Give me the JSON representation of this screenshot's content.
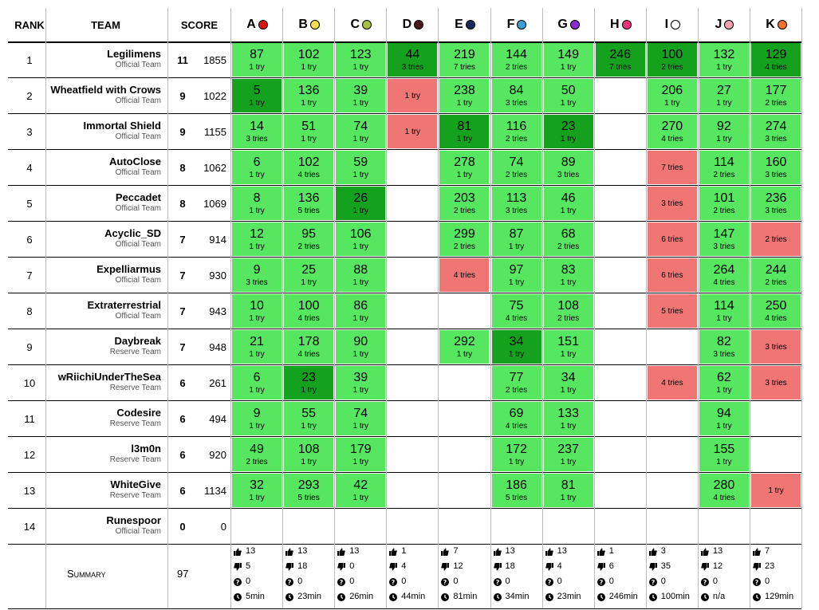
{
  "headers": {
    "rank": "RANK",
    "team": "TEAM",
    "score": "SCORE"
  },
  "summary": {
    "label": "Summary",
    "total": "97"
  },
  "problems": [
    {
      "letter": "A",
      "color": "#e01010",
      "stats": {
        "accepted": "13",
        "rejected": "5",
        "pending": "0",
        "first": "5min"
      }
    },
    {
      "letter": "B",
      "color": "#f4e04a",
      "stats": {
        "accepted": "13",
        "rejected": "18",
        "pending": "0",
        "first": "23min"
      }
    },
    {
      "letter": "C",
      "color": "#a8c040",
      "stats": {
        "accepted": "13",
        "rejected": "0",
        "pending": "0",
        "first": "26min"
      }
    },
    {
      "letter": "D",
      "color": "#4a1a1a",
      "stats": {
        "accepted": "1",
        "rejected": "4",
        "pending": "0",
        "first": "44min"
      }
    },
    {
      "letter": "E",
      "color": "#1a2a5a",
      "stats": {
        "accepted": "7",
        "rejected": "12",
        "pending": "0",
        "first": "81min"
      }
    },
    {
      "letter": "F",
      "color": "#3aa0d8",
      "stats": {
        "accepted": "13",
        "rejected": "18",
        "pending": "0",
        "first": "34min"
      }
    },
    {
      "letter": "G",
      "color": "#8a2ad0",
      "stats": {
        "accepted": "13",
        "rejected": "4",
        "pending": "0",
        "first": "23min"
      }
    },
    {
      "letter": "H",
      "color": "#f0307a",
      "stats": {
        "accepted": "1",
        "rejected": "6",
        "pending": "0",
        "first": "246min"
      }
    },
    {
      "letter": "I",
      "color": "#ffffff",
      "stats": {
        "accepted": "3",
        "rejected": "35",
        "pending": "0",
        "first": "100min"
      }
    },
    {
      "letter": "J",
      "color": "#f4a0b0",
      "stats": {
        "accepted": "13",
        "rejected": "12",
        "pending": "0",
        "first": "n/a"
      }
    },
    {
      "letter": "K",
      "color": "#f0702a",
      "stats": {
        "accepted": "7",
        "rejected": "23",
        "pending": "0",
        "first": "129min"
      }
    }
  ],
  "teams": [
    {
      "rank": "1",
      "name": "Legilimens",
      "type": "Official Team",
      "solved": "11",
      "penalty": "1855",
      "cells": [
        {
          "status": "ok",
          "time": "87",
          "tries": "1 try"
        },
        {
          "status": "ok",
          "time": "102",
          "tries": "1 try"
        },
        {
          "status": "ok",
          "time": "123",
          "tries": "1 try"
        },
        {
          "status": "first",
          "time": "44",
          "tries": "3 tries"
        },
        {
          "status": "ok",
          "time": "219",
          "tries": "7 tries"
        },
        {
          "status": "ok",
          "time": "144",
          "tries": "2 tries"
        },
        {
          "status": "ok",
          "time": "149",
          "tries": "1 try"
        },
        {
          "status": "first",
          "time": "246",
          "tries": "7 tries"
        },
        {
          "status": "first",
          "time": "100",
          "tries": "2 tries"
        },
        {
          "status": "ok",
          "time": "132",
          "tries": "1 try"
        },
        {
          "status": "first",
          "time": "129",
          "tries": "4 tries"
        }
      ]
    },
    {
      "rank": "2",
      "name": "Wheatfield with Crows",
      "type": "Official Team",
      "solved": "9",
      "penalty": "1022",
      "cells": [
        {
          "status": "first",
          "time": "5",
          "tries": "1 try"
        },
        {
          "status": "ok",
          "time": "136",
          "tries": "1 try"
        },
        {
          "status": "ok",
          "time": "39",
          "tries": "1 try"
        },
        {
          "status": "fail",
          "time": "",
          "tries": "1 try"
        },
        {
          "status": "ok",
          "time": "238",
          "tries": "1 try"
        },
        {
          "status": "ok",
          "time": "84",
          "tries": "3 tries"
        },
        {
          "status": "ok",
          "time": "50",
          "tries": "1 try"
        },
        null,
        {
          "status": "ok",
          "time": "206",
          "tries": "1 try"
        },
        {
          "status": "ok",
          "time": "27",
          "tries": "1 try"
        },
        {
          "status": "ok",
          "time": "177",
          "tries": "2 tries"
        }
      ]
    },
    {
      "rank": "3",
      "name": "Immortal Shield",
      "type": "Official Team",
      "solved": "9",
      "penalty": "1155",
      "cells": [
        {
          "status": "ok",
          "time": "14",
          "tries": "3 tries"
        },
        {
          "status": "ok",
          "time": "51",
          "tries": "1 try"
        },
        {
          "status": "ok",
          "time": "74",
          "tries": "1 try"
        },
        {
          "status": "fail",
          "time": "",
          "tries": "1 try"
        },
        {
          "status": "first",
          "time": "81",
          "tries": "1 try"
        },
        {
          "status": "ok",
          "time": "116",
          "tries": "2 tries"
        },
        {
          "status": "first",
          "time": "23",
          "tries": "1 try"
        },
        null,
        {
          "status": "ok",
          "time": "270",
          "tries": "4 tries"
        },
        {
          "status": "ok",
          "time": "92",
          "tries": "1 try"
        },
        {
          "status": "ok",
          "time": "274",
          "tries": "3 tries"
        }
      ]
    },
    {
      "rank": "4",
      "name": "AutoClose",
      "type": "Official Team",
      "solved": "8",
      "penalty": "1062",
      "cells": [
        {
          "status": "ok",
          "time": "6",
          "tries": "1 try"
        },
        {
          "status": "ok",
          "time": "102",
          "tries": "4 tries"
        },
        {
          "status": "ok",
          "time": "59",
          "tries": "1 try"
        },
        null,
        {
          "status": "ok",
          "time": "278",
          "tries": "1 try"
        },
        {
          "status": "ok",
          "time": "74",
          "tries": "2 tries"
        },
        {
          "status": "ok",
          "time": "89",
          "tries": "3 tries"
        },
        null,
        {
          "status": "fail",
          "time": "",
          "tries": "7 tries"
        },
        {
          "status": "ok",
          "time": "114",
          "tries": "2 tries"
        },
        {
          "status": "ok",
          "time": "160",
          "tries": "3 tries"
        }
      ]
    },
    {
      "rank": "5",
      "name": "Peccadet",
      "type": "Official Team",
      "solved": "8",
      "penalty": "1069",
      "cells": [
        {
          "status": "ok",
          "time": "8",
          "tries": "1 try"
        },
        {
          "status": "ok",
          "time": "136",
          "tries": "5 tries"
        },
        {
          "status": "first",
          "time": "26",
          "tries": "1 try"
        },
        null,
        {
          "status": "ok",
          "time": "203",
          "tries": "2 tries"
        },
        {
          "status": "ok",
          "time": "113",
          "tries": "3 tries"
        },
        {
          "status": "ok",
          "time": "46",
          "tries": "1 try"
        },
        null,
        {
          "status": "fail",
          "time": "",
          "tries": "3 tries"
        },
        {
          "status": "ok",
          "time": "101",
          "tries": "2 tries"
        },
        {
          "status": "ok",
          "time": "236",
          "tries": "3 tries"
        }
      ]
    },
    {
      "rank": "6",
      "name": "Acyclic_SD",
      "type": "Official Team",
      "solved": "7",
      "penalty": "914",
      "cells": [
        {
          "status": "ok",
          "time": "12",
          "tries": "1 try"
        },
        {
          "status": "ok",
          "time": "95",
          "tries": "2 tries"
        },
        {
          "status": "ok",
          "time": "106",
          "tries": "1 try"
        },
        null,
        {
          "status": "ok",
          "time": "299",
          "tries": "2 tries"
        },
        {
          "status": "ok",
          "time": "87",
          "tries": "1 try"
        },
        {
          "status": "ok",
          "time": "68",
          "tries": "2 tries"
        },
        null,
        {
          "status": "fail",
          "time": "",
          "tries": "6 tries"
        },
        {
          "status": "ok",
          "time": "147",
          "tries": "3 tries"
        },
        {
          "status": "fail",
          "time": "",
          "tries": "2 tries"
        }
      ]
    },
    {
      "rank": "7",
      "name": "Expelliarmus",
      "type": "Official Team",
      "solved": "7",
      "penalty": "930",
      "cells": [
        {
          "status": "ok",
          "time": "9",
          "tries": "3 tries"
        },
        {
          "status": "ok",
          "time": "25",
          "tries": "1 try"
        },
        {
          "status": "ok",
          "time": "88",
          "tries": "1 try"
        },
        null,
        {
          "status": "fail",
          "time": "",
          "tries": "4 tries"
        },
        {
          "status": "ok",
          "time": "97",
          "tries": "1 try"
        },
        {
          "status": "ok",
          "time": "83",
          "tries": "1 try"
        },
        null,
        {
          "status": "fail",
          "time": "",
          "tries": "6 tries"
        },
        {
          "status": "ok",
          "time": "264",
          "tries": "4 tries"
        },
        {
          "status": "ok",
          "time": "244",
          "tries": "2 tries"
        }
      ]
    },
    {
      "rank": "8",
      "name": "Extraterrestrial",
      "type": "Official Team",
      "solved": "7",
      "penalty": "943",
      "cells": [
        {
          "status": "ok",
          "time": "10",
          "tries": "1 try"
        },
        {
          "status": "ok",
          "time": "100",
          "tries": "4 tries"
        },
        {
          "status": "ok",
          "time": "86",
          "tries": "1 try"
        },
        null,
        null,
        {
          "status": "ok",
          "time": "75",
          "tries": "4 tries"
        },
        {
          "status": "ok",
          "time": "108",
          "tries": "2 tries"
        },
        null,
        {
          "status": "fail",
          "time": "",
          "tries": "5 tries"
        },
        {
          "status": "ok",
          "time": "114",
          "tries": "1 try"
        },
        {
          "status": "ok",
          "time": "250",
          "tries": "4 tries"
        }
      ]
    },
    {
      "rank": "9",
      "name": "Daybreak",
      "type": "Reserve Team",
      "solved": "7",
      "penalty": "948",
      "cells": [
        {
          "status": "ok",
          "time": "21",
          "tries": "1 try"
        },
        {
          "status": "ok",
          "time": "178",
          "tries": "4 tries"
        },
        {
          "status": "ok",
          "time": "90",
          "tries": "1 try"
        },
        null,
        {
          "status": "ok",
          "time": "292",
          "tries": "1 try"
        },
        {
          "status": "first",
          "time": "34",
          "tries": "1 try"
        },
        {
          "status": "ok",
          "time": "151",
          "tries": "1 try"
        },
        null,
        null,
        {
          "status": "ok",
          "time": "82",
          "tries": "3 tries"
        },
        {
          "status": "fail",
          "time": "",
          "tries": "3 tries"
        }
      ]
    },
    {
      "rank": "10",
      "name": "wRiichiUnderTheSea",
      "type": "Reserve Team",
      "solved": "6",
      "penalty": "261",
      "cells": [
        {
          "status": "ok",
          "time": "6",
          "tries": "1 try"
        },
        {
          "status": "first",
          "time": "23",
          "tries": "1 try"
        },
        {
          "status": "ok",
          "time": "39",
          "tries": "1 try"
        },
        null,
        null,
        {
          "status": "ok",
          "time": "77",
          "tries": "2 tries"
        },
        {
          "status": "ok",
          "time": "34",
          "tries": "1 try"
        },
        null,
        {
          "status": "fail",
          "time": "",
          "tries": "4 tries"
        },
        {
          "status": "ok",
          "time": "62",
          "tries": "1 try"
        },
        {
          "status": "fail",
          "time": "",
          "tries": "3 tries"
        }
      ]
    },
    {
      "rank": "11",
      "name": "Codesire",
      "type": "Reserve Team",
      "solved": "6",
      "penalty": "494",
      "cells": [
        {
          "status": "ok",
          "time": "9",
          "tries": "1 try"
        },
        {
          "status": "ok",
          "time": "55",
          "tries": "1 try"
        },
        {
          "status": "ok",
          "time": "74",
          "tries": "1 try"
        },
        null,
        null,
        {
          "status": "ok",
          "time": "69",
          "tries": "4 tries"
        },
        {
          "status": "ok",
          "time": "133",
          "tries": "1 try"
        },
        null,
        null,
        {
          "status": "ok",
          "time": "94",
          "tries": "1 try"
        },
        null
      ]
    },
    {
      "rank": "12",
      "name": "l3m0n",
      "type": "Reserve Team",
      "solved": "6",
      "penalty": "920",
      "cells": [
        {
          "status": "ok",
          "time": "49",
          "tries": "2 tries"
        },
        {
          "status": "ok",
          "time": "108",
          "tries": "1 try"
        },
        {
          "status": "ok",
          "time": "179",
          "tries": "1 try"
        },
        null,
        null,
        {
          "status": "ok",
          "time": "172",
          "tries": "1 try"
        },
        {
          "status": "ok",
          "time": "237",
          "tries": "1 try"
        },
        null,
        null,
        {
          "status": "ok",
          "time": "155",
          "tries": "1 try"
        },
        null
      ]
    },
    {
      "rank": "13",
      "name": "WhiteGive",
      "type": "Reserve Team",
      "solved": "6",
      "penalty": "1134",
      "cells": [
        {
          "status": "ok",
          "time": "32",
          "tries": "1 try"
        },
        {
          "status": "ok",
          "time": "293",
          "tries": "5 tries"
        },
        {
          "status": "ok",
          "time": "42",
          "tries": "1 try"
        },
        null,
        null,
        {
          "status": "ok",
          "time": "186",
          "tries": "5 tries"
        },
        {
          "status": "ok",
          "time": "81",
          "tries": "1 try"
        },
        null,
        null,
        {
          "status": "ok",
          "time": "280",
          "tries": "4 tries"
        },
        {
          "status": "fail",
          "time": "",
          "tries": "1 try"
        }
      ]
    },
    {
      "rank": "14",
      "name": "Runespoor",
      "type": "Official Team",
      "solved": "0",
      "penalty": "0",
      "cells": [
        null,
        null,
        null,
        null,
        null,
        null,
        null,
        null,
        null,
        null,
        null
      ]
    }
  ]
}
